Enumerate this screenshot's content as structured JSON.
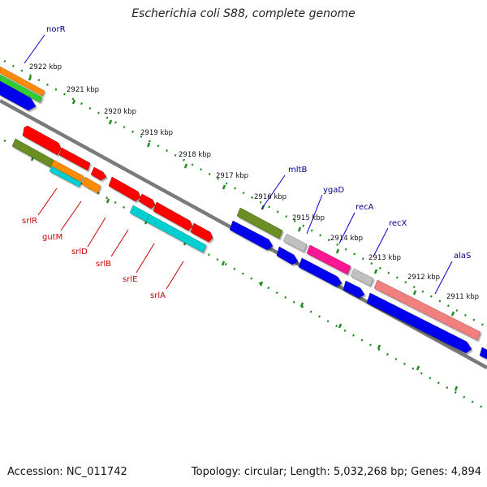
{
  "title": "Escherichia coli S88, complete genome",
  "footer": {
    "accession": "Accession: NC_011742",
    "summary": "Topology: circular; Length: 5,032,268 bp; Genes: 4,894"
  },
  "colors": {
    "backbone": "#888888",
    "tick": "#228b22",
    "gene_label_forward": "#00008b",
    "gene_label_reverse": "#cc0000"
  },
  "kbp_labels": [
    "2922 kbp",
    "2921 kbp",
    "2920 kbp",
    "2919 kbp",
    "2918 kbp",
    "2917 kbp",
    "2916 kbp",
    "2915 kbp",
    "2914 kbp",
    "2913 kbp",
    "2912 kbp",
    "2911 kbp"
  ],
  "gene_labels_top": [
    "norR",
    "mltB",
    "ygaD",
    "recA",
    "recX",
    "alaS"
  ],
  "gene_labels_bottom": [
    "srlR",
    "gutM",
    "srlD",
    "srlB",
    "srlE",
    "srlA"
  ]
}
